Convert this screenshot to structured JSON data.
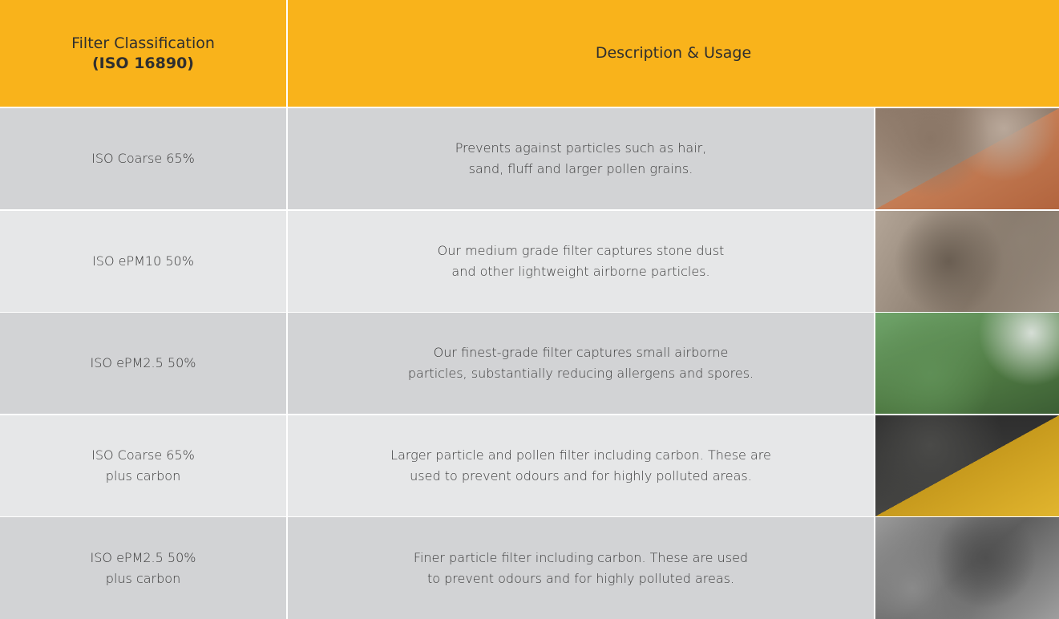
{
  "table": {
    "header": {
      "classification": [
        "Filter Classification",
        "(ISO 16890)"
      ],
      "description": "Description & Usage"
    },
    "rows": [
      {
        "classification": [
          "ISO Coarse 65%"
        ],
        "description": [
          "Prevents against  particles such as hair,",
          "sand, fluff and larger pollen grains."
        ]
      },
      {
        "classification": [
          "ISO ePM10 50%"
        ],
        "description": [
          "Our medium grade filter captures stone dust",
          "and other lightweight airborne particles."
        ]
      },
      {
        "classification": [
          "ISO ePM2.5 50%"
        ],
        "description": [
          "Our finest-grade filter captures small airborne",
          "particles, substantially reducing allergens and spores."
        ]
      },
      {
        "classification": [
          "ISO Coarse 65%",
          "plus carbon"
        ],
        "description": [
          "Larger particle and pollen filter including carbon. These are",
          "used to prevent odours and for highly polluted areas."
        ]
      },
      {
        "classification": [
          "ISO ePM2.5 50%",
          "plus carbon"
        ],
        "description": [
          "Finer particle filter including carbon. These are used",
          "to prevent odours and for highly polluted areas."
        ]
      }
    ]
  }
}
